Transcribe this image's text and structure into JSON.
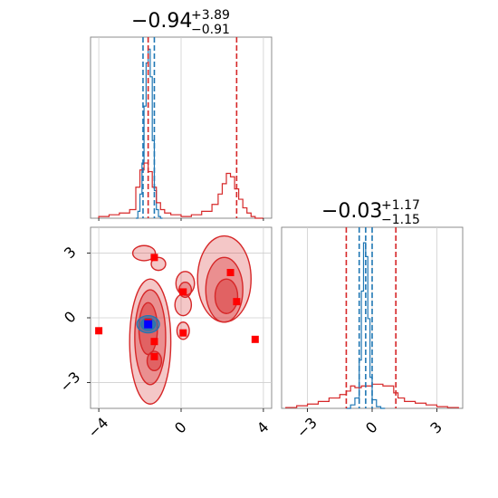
{
  "chart_data": {
    "type": "corner",
    "grid": true,
    "colors": {
      "primary": "#1f77b4",
      "secondary": "#d62728",
      "highlight": "#0000ff"
    },
    "panels": [
      {
        "id": "hist-x",
        "type": "histogram",
        "title": {
          "main": "−0.94",
          "sup": "+3.89",
          "sub": "−0.91"
        },
        "xlim": [
          -4.4,
          4.4
        ],
        "vlines_primary": [
          -1.85,
          -1.3
        ],
        "vlines_secondary": [
          -1.6,
          2.7
        ],
        "series": [
          {
            "name": "",
            "color": "#1f77b4",
            "bin_edges": [
              -2.2,
              -2.1,
              -2.0,
              -1.9,
              -1.8,
              -1.7,
              -1.6,
              -1.5,
              -1.4,
              -1.3,
              -1.2,
              -1.1,
              -1.0,
              -0.9
            ],
            "counts": [
              0.0,
              0.04,
              0.14,
              0.32,
              0.65,
              0.9,
              0.98,
              0.82,
              0.45,
              0.16,
              0.05,
              0.01,
              0.0
            ]
          },
          {
            "name": "",
            "color": "#d62728",
            "bin_edges": [
              -4.0,
              -3.5,
              -3.0,
              -2.5,
              -2.2,
              -2.0,
              -1.8,
              -1.6,
              -1.4,
              -1.2,
              -1.0,
              -0.8,
              -0.5,
              0.0,
              0.5,
              1.0,
              1.5,
              1.8,
              2.0,
              2.2,
              2.4,
              2.6,
              2.8,
              3.0,
              3.2,
              3.4,
              3.6,
              4.0
            ],
            "counts": [
              0.01,
              0.02,
              0.03,
              0.05,
              0.18,
              0.28,
              0.32,
              0.27,
              0.18,
              0.09,
              0.05,
              0.03,
              0.02,
              0.01,
              0.02,
              0.04,
              0.08,
              0.14,
              0.2,
              0.26,
              0.24,
              0.17,
              0.11,
              0.06,
              0.03,
              0.01,
              0.0
            ]
          }
        ]
      },
      {
        "id": "hist-y",
        "type": "histogram",
        "title": {
          "main": "−0.03",
          "sup": "+1.17",
          "sub": "−1.15"
        },
        "xlim": [
          -4.2,
          4.2
        ],
        "xticks": [
          -3,
          0,
          3
        ],
        "xtick_labels": [
          "−3",
          "0",
          "3"
        ],
        "vlines_primary": [
          -0.6,
          -0.3,
          0.0
        ],
        "vlines_secondary": [
          -1.2,
          1.1
        ],
        "series": [
          {
            "name": "",
            "color": "#1f77b4",
            "bin_edges": [
              -1.2,
              -1.0,
              -0.8,
              -0.6,
              -0.5,
              -0.4,
              -0.3,
              -0.2,
              -0.1,
              0.0,
              0.2,
              0.4,
              0.6
            ],
            "counts": [
              0.0,
              0.02,
              0.06,
              0.28,
              0.68,
              0.96,
              0.88,
              0.52,
              0.18,
              0.05,
              0.01,
              0.0
            ]
          },
          {
            "name": "",
            "color": "#d62728",
            "bin_edges": [
              -4.0,
              -3.5,
              -3.0,
              -2.5,
              -2.0,
              -1.5,
              -1.2,
              -1.0,
              -0.8,
              -0.5,
              0.0,
              0.5,
              1.0,
              1.2,
              1.5,
              2.0,
              2.5,
              3.0,
              3.5,
              4.0
            ],
            "counts": [
              0.005,
              0.015,
              0.025,
              0.04,
              0.06,
              0.08,
              0.1,
              0.13,
              0.12,
              0.13,
              0.14,
              0.13,
              0.09,
              0.06,
              0.04,
              0.03,
              0.02,
              0.01,
              0.005
            ]
          }
        ]
      },
      {
        "id": "joint",
        "type": "contour2d",
        "xlim": [
          -4.4,
          4.4
        ],
        "ylim": [
          -4.2,
          4.2
        ],
        "xticks": [
          -4,
          0,
          4
        ],
        "xtick_labels": [
          "−4",
          "0",
          "4"
        ],
        "yticks": [
          -3,
          0,
          3
        ],
        "ytick_labels": [
          "−3",
          "0",
          "3"
        ],
        "secondary_contours": [
          {
            "level": "outer",
            "fill": 0.45,
            "blobs": [
              {
                "cx": -1.5,
                "cy": -1.1,
                "rx": 1.0,
                "ry": 2.9
              },
              {
                "cx": 2.1,
                "cy": 1.8,
                "rx": 1.3,
                "ry": 2.0
              },
              {
                "cx": -1.8,
                "cy": 3.0,
                "rx": 0.55,
                "ry": 0.35
              },
              {
                "cx": 0.2,
                "cy": 1.6,
                "rx": 0.45,
                "ry": 0.55
              },
              {
                "cx": 0.1,
                "cy": 0.6,
                "rx": 0.4,
                "ry": 0.5
              },
              {
                "cx": 0.1,
                "cy": -0.6,
                "rx": 0.3,
                "ry": 0.4
              },
              {
                "cx": -1.1,
                "cy": 2.5,
                "rx": 0.35,
                "ry": 0.3
              }
            ]
          },
          {
            "level": "mid",
            "fill": 0.7,
            "blobs": [
              {
                "cx": -1.5,
                "cy": -0.9,
                "rx": 0.75,
                "ry": 2.2
              },
              {
                "cx": 2.1,
                "cy": 1.3,
                "rx": 0.9,
                "ry": 1.5
              },
              {
                "cx": 0.2,
                "cy": 1.3,
                "rx": 0.3,
                "ry": 0.35
              }
            ]
          },
          {
            "level": "inner",
            "fill": 0.95,
            "blobs": [
              {
                "cx": -1.6,
                "cy": -0.5,
                "rx": 0.45,
                "ry": 1.2
              },
              {
                "cx": -1.3,
                "cy": -2.0,
                "rx": 0.35,
                "ry": 0.45
              },
              {
                "cx": 2.2,
                "cy": 1.0,
                "rx": 0.55,
                "ry": 0.8
              }
            ]
          }
        ],
        "primary_contours": [
          {
            "cx": -1.6,
            "cy": -0.3,
            "rx": 0.55,
            "ry": 0.4,
            "fill": 0.55
          },
          {
            "cx": -1.6,
            "cy": -0.3,
            "rx": 0.35,
            "ry": 0.28,
            "fill": 0.85
          }
        ],
        "secondary_markers": [
          [
            -1.3,
            2.8
          ],
          [
            -4.0,
            -0.6
          ],
          [
            0.1,
            1.2
          ],
          [
            2.4,
            2.1
          ],
          [
            2.7,
            0.75
          ],
          [
            3.6,
            -1.0
          ],
          [
            -1.3,
            -1.1
          ],
          [
            -1.3,
            -1.8
          ],
          [
            0.1,
            -0.7
          ],
          [
            -1.6,
            -0.2
          ]
        ],
        "highlight_marker": [
          -1.6,
          -0.3
        ]
      }
    ]
  }
}
